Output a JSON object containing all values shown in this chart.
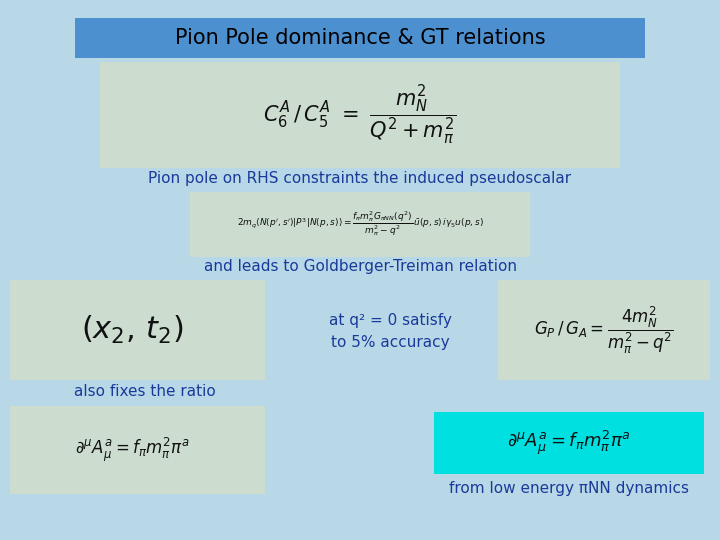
{
  "bg_color": "#b8d8e8",
  "title_text": "Pion Pole dominance & GT relations",
  "title_bg": "#4d90d0",
  "title_fg": "#000000",
  "text_color": "#1a3a9a",
  "box_color": "#ccddd0",
  "cyan_box_color": "#00e0e0",
  "formula1": "$C_6^A \\, / \\, C_5^A \\ = \\ \\dfrac{m_N^2}{Q^2 + m_\\pi^2}$",
  "label1": "Pion pole on RHS constraints the induced pseudoscalar",
  "formula2": "$2m_q \\langle N(p^{\\prime},s^{\\prime})| P^3 | N(p,s) \\rangle = \\dfrac{f_\\pi m_\\pi^2 G_{\\pi NN}(q^2)}{m_\\pi^2 - q^2} \\, \\bar{u}(p,s)\\, i\\gamma_5 u(p,s)$",
  "label2": "and leads to Goldberger-Treiman relation",
  "formula3": "$(x_2,\\, t_2)$",
  "label3_line1": "at q² = 0 satisfy",
  "label3_line2": "to 5% accuracy",
  "formula4": "$G_P \\,/\\, G_A = \\dfrac{4m_N^2}{m_\\pi^2 - q^2}$",
  "label4": "also fixes the ratio",
  "formula5_left": "$\\partial^\\mu A_\\mu^a = f_\\pi m_\\pi^2 \\pi^a$",
  "formula5_right": "$\\partial^\\mu A_\\mu^a = f_\\pi m_\\pi^2 \\pi^a$",
  "label5": "from low energy πNN dynamics"
}
